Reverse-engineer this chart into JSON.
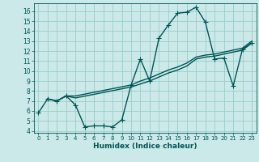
{
  "xlabel": "Humidex (Indice chaleur)",
  "xlim": [
    -0.5,
    23.5
  ],
  "ylim": [
    3.8,
    16.8
  ],
  "yticks": [
    4,
    5,
    6,
    7,
    8,
    9,
    10,
    11,
    12,
    13,
    14,
    15,
    16
  ],
  "xticks": [
    0,
    1,
    2,
    3,
    4,
    5,
    6,
    7,
    8,
    9,
    10,
    11,
    12,
    13,
    14,
    15,
    16,
    17,
    18,
    19,
    20,
    21,
    22,
    23
  ],
  "bg_color": "#cce9e9",
  "grid_color": "#99cccc",
  "line_color": "#005555",
  "lw": 1.0,
  "ms": 4,
  "line1_x": [
    0,
    1,
    2,
    3,
    4,
    5,
    6,
    7,
    8,
    9,
    10,
    11,
    12,
    13,
    14,
    15,
    16,
    17,
    18,
    19,
    20,
    21,
    22,
    23
  ],
  "line1_y": [
    5.8,
    7.2,
    7.0,
    7.5,
    6.6,
    4.4,
    4.5,
    4.5,
    4.4,
    5.1,
    8.6,
    11.2,
    9.0,
    13.3,
    14.6,
    15.8,
    15.9,
    16.4,
    14.9,
    11.2,
    11.3,
    8.5,
    12.2,
    12.8
  ],
  "line2_x": [
    1,
    2,
    3,
    4,
    10,
    11,
    12,
    13,
    14,
    15,
    16,
    17,
    18,
    19,
    20,
    21,
    22,
    23
  ],
  "line2_y": [
    7.2,
    7.0,
    7.5,
    7.3,
    8.4,
    8.7,
    9.0,
    9.4,
    9.8,
    10.1,
    10.5,
    11.2,
    11.4,
    11.5,
    11.7,
    11.9,
    12.1,
    12.8
  ],
  "line3_x": [
    1,
    2,
    3,
    4,
    10,
    11,
    12,
    13,
    14,
    15,
    16,
    17,
    18,
    19,
    20,
    21,
    22,
    23
  ],
  "line3_y": [
    7.2,
    7.0,
    7.5,
    7.5,
    8.6,
    9.0,
    9.3,
    9.7,
    10.1,
    10.4,
    10.8,
    11.4,
    11.6,
    11.7,
    11.9,
    12.1,
    12.3,
    13.0
  ]
}
